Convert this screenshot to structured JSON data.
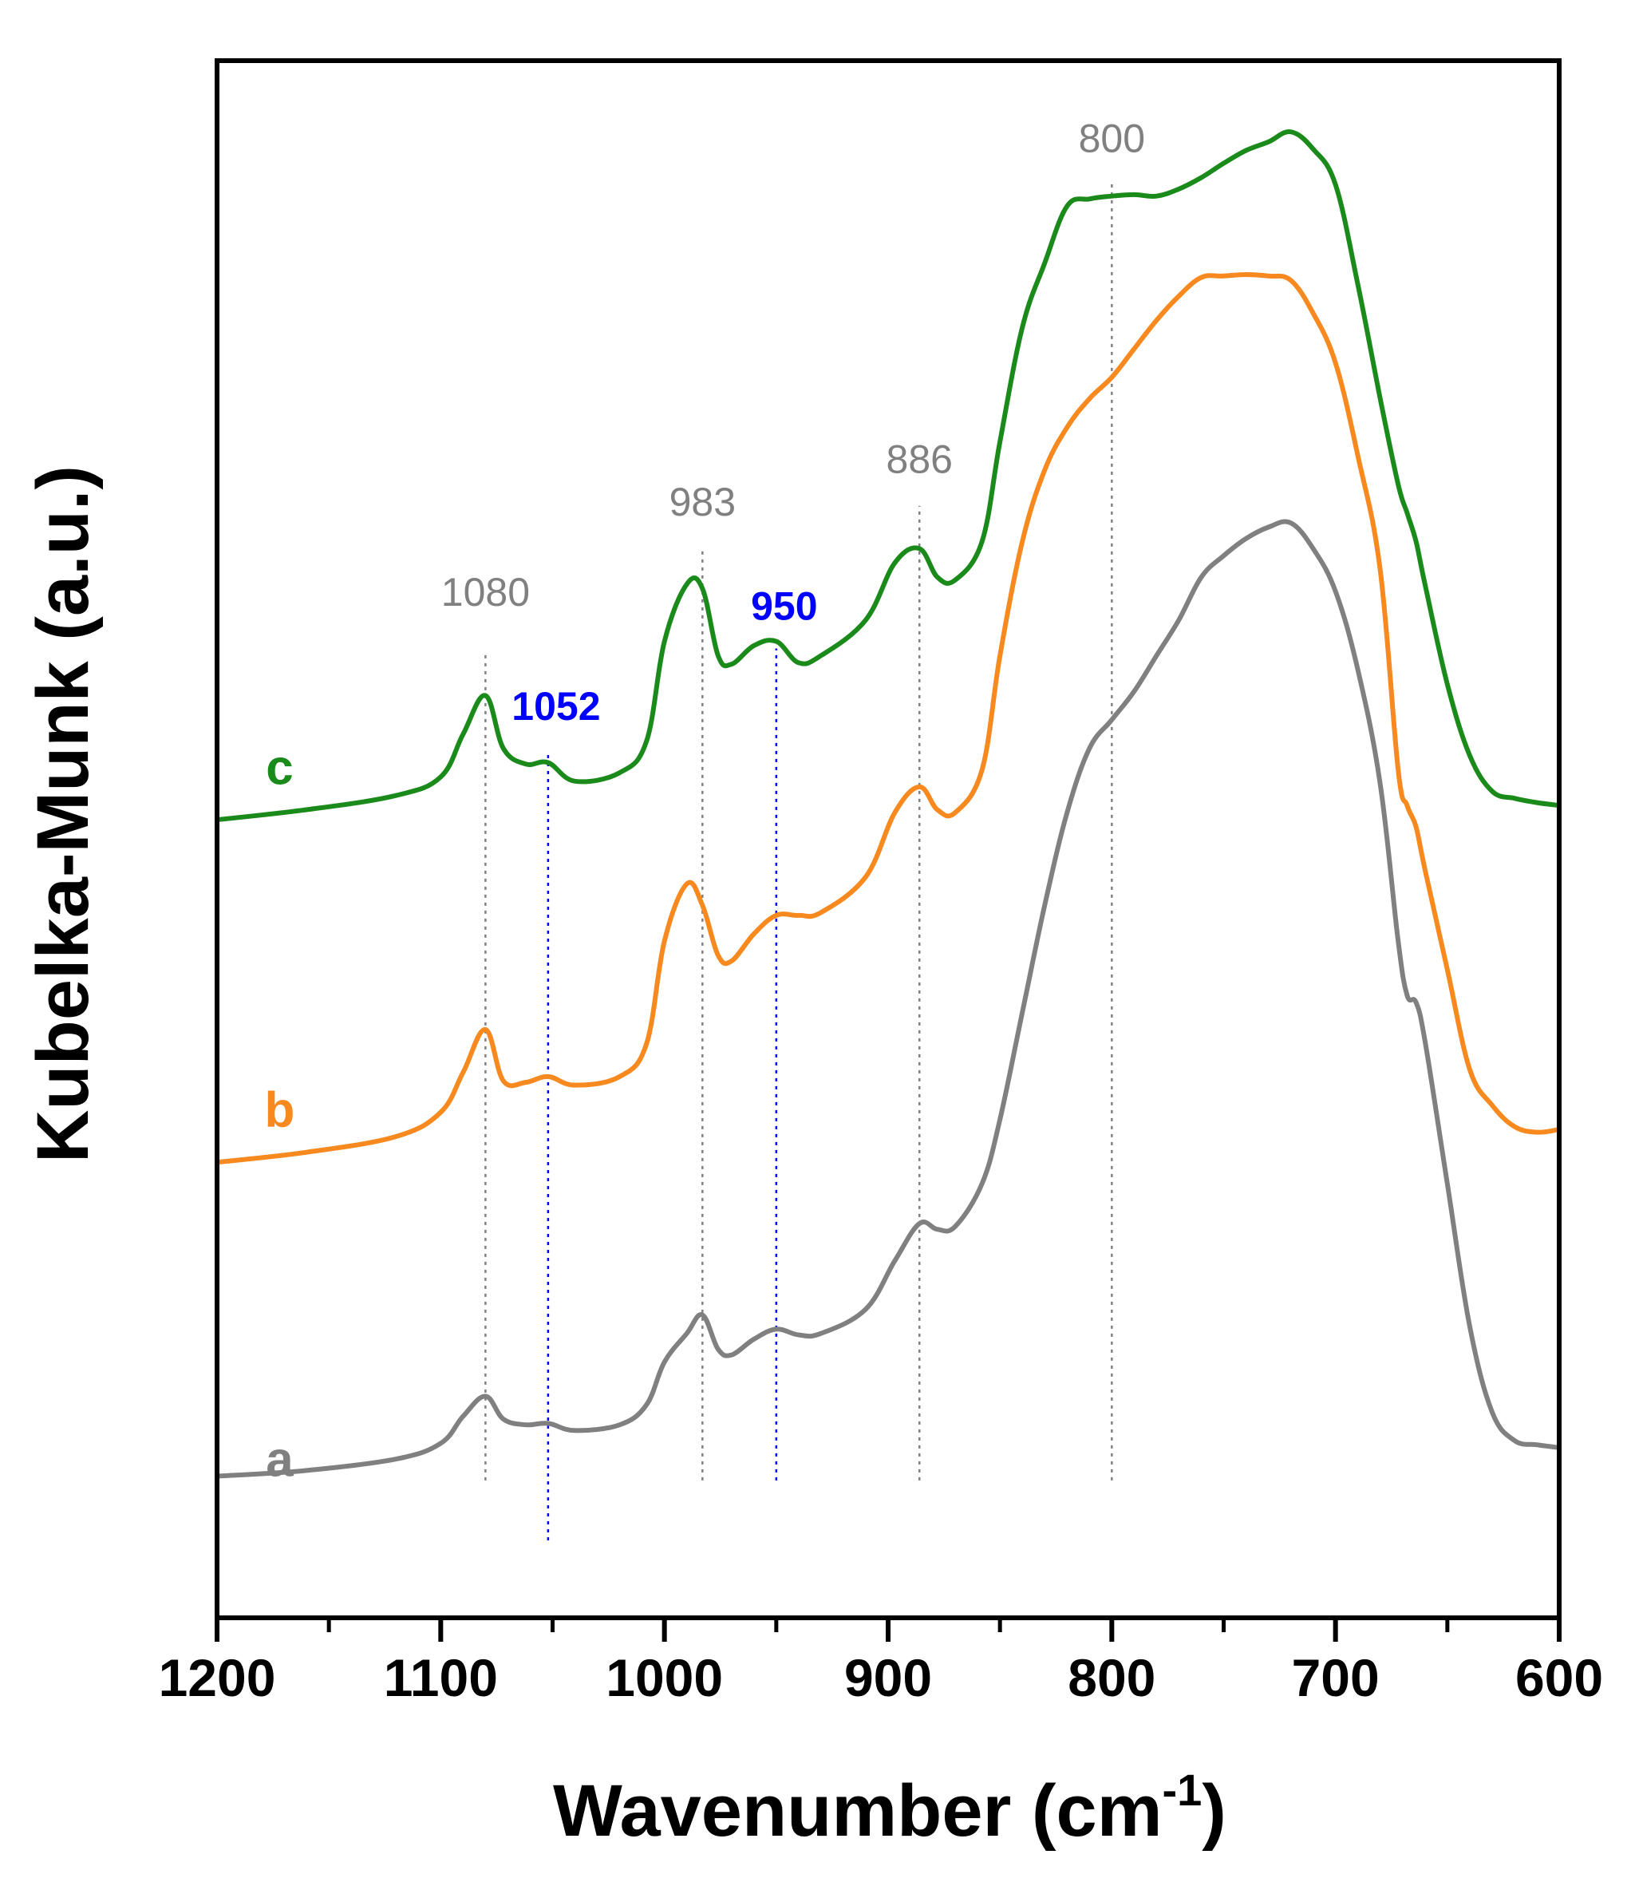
{
  "chart_data": {
    "type": "line",
    "title": "",
    "xlabel": "Wavenumber",
    "xlabel_unit_base": "cm",
    "xlabel_unit_exp": "-1",
    "ylabel": "Kubelka-Munk (a.u.)",
    "xlim": [
      1200,
      600
    ],
    "ylim": [
      0,
      100
    ],
    "x_reversed": true,
    "y_ticks_shown": false,
    "grid": false,
    "x_ticks": [
      {
        "value": 1200,
        "label": "1200"
      },
      {
        "value": 1100,
        "label": "1100"
      },
      {
        "value": 1000,
        "label": "1000"
      },
      {
        "value": 900,
        "label": "900"
      },
      {
        "value": 800,
        "label": "800"
      },
      {
        "value": 700,
        "label": "700"
      },
      {
        "value": 600,
        "label": "600"
      }
    ],
    "x_minor_ticks": [
      1150,
      1050,
      950,
      850,
      750,
      650
    ],
    "series": [
      {
        "name": "a",
        "label": "a",
        "color": "#808080",
        "label_anchor": {
          "x": 1172,
          "y": 4.5
        },
        "points": [
          [
            1200,
            4.5
          ],
          [
            1160,
            4.9
          ],
          [
            1120,
            5.7
          ],
          [
            1100,
            6.8
          ],
          [
            1090,
            8.7
          ],
          [
            1080,
            10.1
          ],
          [
            1072,
            8.5
          ],
          [
            1062,
            8.1
          ],
          [
            1052,
            8.2
          ],
          [
            1040,
            7.7
          ],
          [
            1020,
            8.1
          ],
          [
            1008,
            9.5
          ],
          [
            1000,
            12.5
          ],
          [
            990,
            14.5
          ],
          [
            983,
            15.8
          ],
          [
            976,
            13.4
          ],
          [
            970,
            13.0
          ],
          [
            960,
            14.1
          ],
          [
            950,
            14.8
          ],
          [
            940,
            14.4
          ],
          [
            930,
            14.5
          ],
          [
            910,
            16.2
          ],
          [
            897,
            19.6
          ],
          [
            886,
            22.2
          ],
          [
            878,
            21.8
          ],
          [
            870,
            22.0
          ],
          [
            858,
            25.0
          ],
          [
            850,
            29.5
          ],
          [
            840,
            37.0
          ],
          [
            830,
            44.5
          ],
          [
            820,
            51.0
          ],
          [
            810,
            55.5
          ],
          [
            800,
            57.5
          ],
          [
            790,
            59.5
          ],
          [
            780,
            62.0
          ],
          [
            770,
            64.5
          ],
          [
            760,
            67.5
          ],
          [
            750,
            69.0
          ],
          [
            740,
            70.2
          ],
          [
            730,
            71.0
          ],
          [
            720,
            71.3
          ],
          [
            710,
            69.5
          ],
          [
            700,
            66.5
          ],
          [
            690,
            61.0
          ],
          [
            680,
            53.0
          ],
          [
            672,
            42.0
          ],
          [
            668,
            38.2
          ],
          [
            664,
            37.7
          ],
          [
            660,
            35.0
          ],
          [
            650,
            25.0
          ],
          [
            640,
            15.0
          ],
          [
            630,
            9.0
          ],
          [
            620,
            7.0
          ],
          [
            610,
            6.7
          ],
          [
            600,
            6.5
          ]
        ]
      },
      {
        "name": "b",
        "label": "b",
        "color": "#f7891f",
        "label_anchor": {
          "x": 1172,
          "y": 29.0
        },
        "points": [
          [
            1200,
            26.5
          ],
          [
            1160,
            27.2
          ],
          [
            1120,
            28.3
          ],
          [
            1100,
            30.0
          ],
          [
            1090,
            32.8
          ],
          [
            1080,
            35.8
          ],
          [
            1072,
            32.2
          ],
          [
            1062,
            32.1
          ],
          [
            1052,
            32.5
          ],
          [
            1040,
            31.9
          ],
          [
            1020,
            32.5
          ],
          [
            1008,
            34.8
          ],
          [
            1000,
            42.0
          ],
          [
            990,
            46.0
          ],
          [
            983,
            44.5
          ],
          [
            976,
            41.0
          ],
          [
            970,
            40.6
          ],
          [
            960,
            42.5
          ],
          [
            950,
            43.8
          ],
          [
            940,
            43.8
          ],
          [
            930,
            44.0
          ],
          [
            910,
            46.5
          ],
          [
            897,
            51.0
          ],
          [
            886,
            52.8
          ],
          [
            878,
            51.2
          ],
          [
            870,
            51.0
          ],
          [
            858,
            54.0
          ],
          [
            850,
            62.0
          ],
          [
            840,
            70.0
          ],
          [
            830,
            75.0
          ],
          [
            820,
            78.0
          ],
          [
            810,
            80.0
          ],
          [
            800,
            81.5
          ],
          [
            790,
            83.5
          ],
          [
            780,
            85.5
          ],
          [
            770,
            87.2
          ],
          [
            760,
            88.5
          ],
          [
            750,
            88.6
          ],
          [
            740,
            88.7
          ],
          [
            730,
            88.6
          ],
          [
            720,
            88.3
          ],
          [
            710,
            86.0
          ],
          [
            700,
            82.5
          ],
          [
            690,
            76.0
          ],
          [
            680,
            68.0
          ],
          [
            672,
            54.0
          ],
          [
            668,
            51.5
          ],
          [
            664,
            50.0
          ],
          [
            660,
            47.0
          ],
          [
            650,
            40.0
          ],
          [
            640,
            33.0
          ],
          [
            630,
            30.5
          ],
          [
            620,
            29.0
          ],
          [
            610,
            28.6
          ],
          [
            600,
            28.8
          ]
        ]
      },
      {
        "name": "c",
        "label": "c",
        "color": "#1a8a1a",
        "label_anchor": {
          "x": 1172,
          "y": 53.0
        },
        "points": [
          [
            1200,
            50.5
          ],
          [
            1160,
            51.2
          ],
          [
            1120,
            52.2
          ],
          [
            1100,
            53.5
          ],
          [
            1090,
            56.5
          ],
          [
            1080,
            59.2
          ],
          [
            1072,
            55.5
          ],
          [
            1062,
            54.4
          ],
          [
            1052,
            54.5
          ],
          [
            1040,
            53.2
          ],
          [
            1020,
            53.8
          ],
          [
            1008,
            56.0
          ],
          [
            1000,
            63.0
          ],
          [
            990,
            67.0
          ],
          [
            983,
            66.7
          ],
          [
            976,
            62.0
          ],
          [
            970,
            61.4
          ],
          [
            960,
            62.7
          ],
          [
            950,
            63.0
          ],
          [
            940,
            61.5
          ],
          [
            930,
            62.0
          ],
          [
            910,
            64.5
          ],
          [
            897,
            68.5
          ],
          [
            886,
            69.5
          ],
          [
            878,
            67.5
          ],
          [
            870,
            67.3
          ],
          [
            858,
            70.0
          ],
          [
            850,
            77.0
          ],
          [
            840,
            85.0
          ],
          [
            830,
            89.5
          ],
          [
            820,
            93.5
          ],
          [
            810,
            94.0
          ],
          [
            800,
            94.2
          ],
          [
            790,
            94.3
          ],
          [
            780,
            94.2
          ],
          [
            770,
            94.7
          ],
          [
            760,
            95.5
          ],
          [
            750,
            96.5
          ],
          [
            740,
            97.4
          ],
          [
            730,
            98.0
          ],
          [
            720,
            98.7
          ],
          [
            710,
            97.5
          ],
          [
            700,
            95.0
          ],
          [
            690,
            88.0
          ],
          [
            680,
            80.0
          ],
          [
            672,
            74.0
          ],
          [
            668,
            72.0
          ],
          [
            664,
            70.0
          ],
          [
            660,
            67.0
          ],
          [
            650,
            60.0
          ],
          [
            640,
            55.0
          ],
          [
            630,
            52.5
          ],
          [
            620,
            52.0
          ],
          [
            610,
            51.7
          ],
          [
            600,
            51.5
          ]
        ]
      }
    ],
    "reference_lines": [
      {
        "x": 1080,
        "label": "1080",
        "color": "#808080",
        "bold": false,
        "label_y": 65.5,
        "line_from": 4.2,
        "line_to": 62.2
      },
      {
        "x": 1052,
        "label": "1052",
        "color": "#0000ff",
        "bold": true,
        "label_y": 57.5,
        "line_from": 0.0,
        "line_to": 55.3
      },
      {
        "x": 983,
        "label": "983",
        "color": "#808080",
        "bold": false,
        "label_y": 71.8,
        "line_from": 4.2,
        "line_to": 69.6
      },
      {
        "x": 950,
        "label": "950",
        "color": "#0000ff",
        "bold": true,
        "label_y": 64.5,
        "line_from": 4.2,
        "line_to": 62.5
      },
      {
        "x": 886,
        "label": "886",
        "color": "#808080",
        "bold": false,
        "label_y": 74.8,
        "line_from": 4.2,
        "line_to": 72.5
      },
      {
        "x": 800,
        "label": "800",
        "color": "#808080",
        "bold": false,
        "label_y": 97.3,
        "line_from": 4.2,
        "line_to": 95.3
      }
    ]
  }
}
